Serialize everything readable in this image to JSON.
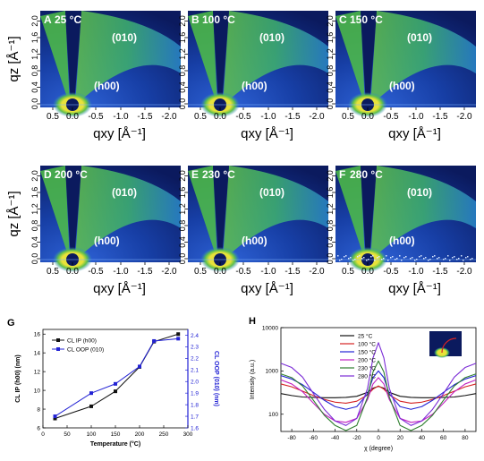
{
  "colors": {
    "bg_dark": "#0b1a5e",
    "bg_mid": "#1a3fb0",
    "arc_green": "#4fbf47",
    "arc_teal": "#2aa7b8",
    "panel_label": "#ffffff",
    "series_black": "#111111",
    "series_blue": "#2323d4",
    "axis_right_color": "#2323d4"
  },
  "gi_panels": [
    {
      "letter": "A",
      "temp": "25 °C",
      "ring_label": "(010)",
      "low_label": "(h00)"
    },
    {
      "letter": "B",
      "temp": "100 °C",
      "ring_label": "(010)",
      "low_label": "(h00)"
    },
    {
      "letter": "C",
      "temp": "150 °C",
      "ring_label": "(010)",
      "low_label": "(h00)"
    },
    {
      "letter": "D",
      "temp": "200 °C",
      "ring_label": "(010)",
      "low_label": "(h00)"
    },
    {
      "letter": "E",
      "temp": "230 °C",
      "ring_label": "(010)",
      "low_label": "(h00)"
    },
    {
      "letter": "F",
      "temp": "280 °C",
      "ring_label": "(010)",
      "low_label": "(h00)"
    }
  ],
  "gi_axes": {
    "qz_label": "qz [Å⁻¹]",
    "qz_ticks": [
      "0.0",
      "0.4",
      "0.8",
      "1.2",
      "1.6",
      "2.0"
    ],
    "qxy_label": "qxy [Å⁻¹]",
    "qxy_ticks": [
      "0.5",
      "0.0",
      "-0.5",
      "-1.0",
      "-1.5",
      "-2.0"
    ]
  },
  "chart_data": [
    {
      "panel": "G",
      "type": "line",
      "xlabel": "Temperature (°C)",
      "ylabel_left": "CL IP (h00) (nm)",
      "ylabel_right": "CL OOP (010) (nm)",
      "xlim": [
        0,
        300
      ],
      "ylim_left": [
        6,
        16.5
      ],
      "ylim_right": [
        1.6,
        2.45
      ],
      "x_ticks": [
        "0",
        "50",
        "100",
        "150",
        "200",
        "250",
        "300"
      ],
      "y_ticks_left": [
        "6",
        "8",
        "10",
        "12",
        "14",
        "16"
      ],
      "y_ticks_right": [
        "1.6",
        "1.7",
        "1.8",
        "1.9",
        "2.0",
        "2.1",
        "2.2",
        "2.3",
        "2.4"
      ],
      "series": [
        {
          "name": "CL IP (h00)",
          "axis": "left",
          "x": [
            25,
            100,
            150,
            200,
            230,
            280
          ],
          "y": [
            7.0,
            8.3,
            9.9,
            12.5,
            15.2,
            16.0
          ]
        },
        {
          "name": "CL OOP (010)",
          "axis": "right",
          "x": [
            25,
            100,
            150,
            200,
            230,
            280
          ],
          "y": [
            1.7,
            1.9,
            1.98,
            2.13,
            2.35,
            2.37
          ]
        }
      ]
    },
    {
      "panel": "H",
      "type": "line",
      "xlabel": "χ (degree)",
      "ylabel": "Intensity (a.u.)",
      "yscale": "log",
      "xlim": [
        -90,
        90
      ],
      "ylim": [
        40,
        10000
      ],
      "x_ticks": [
        "-80",
        "-60",
        "-40",
        "-20",
        "0",
        "20",
        "40",
        "60",
        "80"
      ],
      "y_ticks": [
        "100",
        "1000",
        "10000"
      ],
      "x": [
        -90,
        -80,
        -70,
        -60,
        -50,
        -40,
        -30,
        -20,
        -10,
        -5,
        0,
        5,
        10,
        20,
        30,
        40,
        50,
        60,
        70,
        80,
        90
      ],
      "series": [
        {
          "name": "25 °C",
          "color": "#111111",
          "y": [
            300,
            270,
            250,
            245,
            240,
            240,
            245,
            260,
            320,
            400,
            440,
            400,
            320,
            260,
            245,
            240,
            240,
            245,
            250,
            270,
            300
          ]
        },
        {
          "name": "100 °C",
          "color": "#d42323",
          "y": [
            500,
            430,
            340,
            270,
            220,
            190,
            180,
            200,
            280,
            380,
            450,
            380,
            280,
            200,
            180,
            190,
            220,
            270,
            340,
            430,
            500
          ]
        },
        {
          "name": "150 °C",
          "color": "#2323d4",
          "y": [
            780,
            650,
            480,
            320,
            210,
            150,
            130,
            150,
            300,
            700,
            1000,
            700,
            300,
            150,
            130,
            150,
            210,
            320,
            480,
            650,
            780
          ]
        },
        {
          "name": "200 °C",
          "color": "#c020c0",
          "y": [
            620,
            500,
            330,
            180,
            100,
            70,
            65,
            80,
            220,
            500,
            700,
            500,
            220,
            80,
            65,
            70,
            100,
            180,
            330,
            500,
            620
          ]
        },
        {
          "name": "230 °C",
          "color": "#2f7f2f",
          "y": [
            850,
            700,
            450,
            210,
            95,
            55,
            42,
            55,
            250,
            950,
            1700,
            950,
            250,
            55,
            42,
            55,
            95,
            210,
            450,
            700,
            850
          ]
        },
        {
          "name": "280 °C",
          "color": "#7a2bd6",
          "y": [
            1500,
            1200,
            720,
            300,
            130,
            70,
            55,
            80,
            400,
            2000,
            4500,
            2000,
            400,
            80,
            55,
            70,
            130,
            300,
            720,
            1200,
            1500
          ]
        }
      ]
    }
  ],
  "panel_letters": {
    "G": "G",
    "H": "H"
  }
}
